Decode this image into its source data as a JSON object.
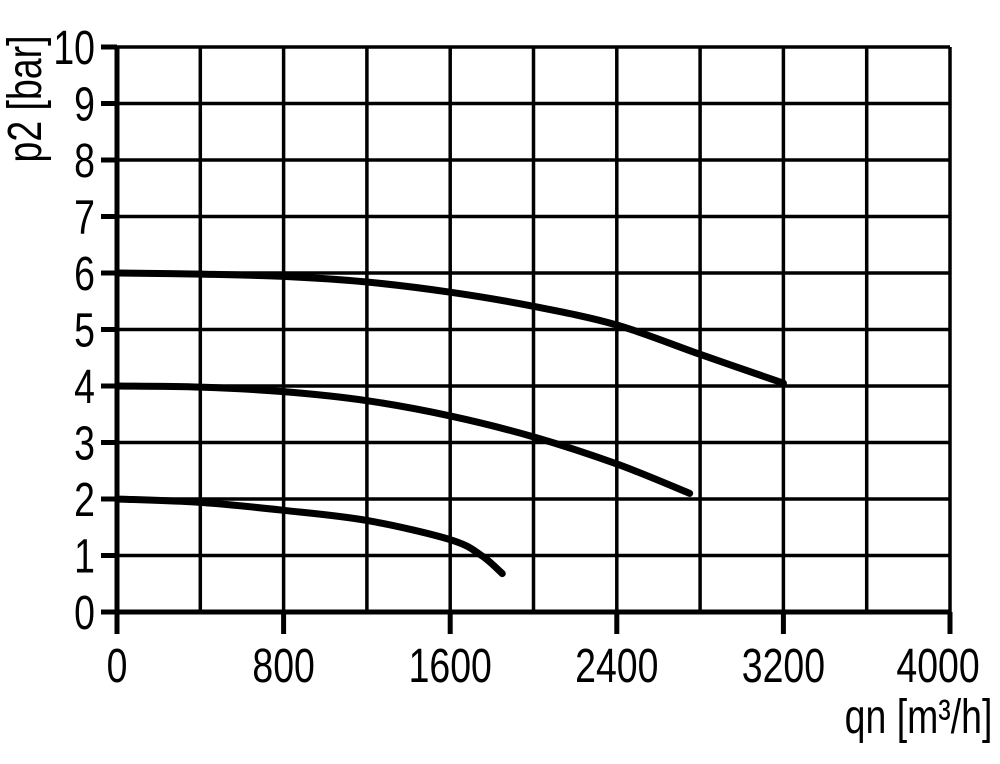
{
  "chart_data": {
    "type": "line",
    "title": "",
    "xlabel": "qn [m³/h]",
    "ylabel": "p2 [bar]",
    "xlim": [
      0,
      4000
    ],
    "ylim": [
      0,
      10
    ],
    "x_tick_values": [
      0,
      800,
      1600,
      2400,
      3200,
      4000
    ],
    "x_tick_labels": [
      "0",
      "800",
      "1600",
      "2400",
      "3200",
      "4000"
    ],
    "x_grid_step": 400,
    "y_tick_values": [
      0,
      1,
      2,
      3,
      4,
      5,
      6,
      7,
      8,
      9,
      10
    ],
    "y_tick_labels": [
      "0",
      "1",
      "2",
      "3",
      "4",
      "5",
      "6",
      "7",
      "8",
      "9",
      "10"
    ],
    "grid": true,
    "legend_position": "none",
    "colors": {
      "background": "#ffffff",
      "grid": "#000000",
      "axis": "#000000",
      "curve": "#000000"
    },
    "series": [
      {
        "name": "curve starting at 6 bar",
        "points": [
          [
            0,
            6.0
          ],
          [
            400,
            5.98
          ],
          [
            800,
            5.94
          ],
          [
            1200,
            5.84
          ],
          [
            1600,
            5.66
          ],
          [
            2000,
            5.41
          ],
          [
            2400,
            5.08
          ],
          [
            2800,
            4.56
          ],
          [
            3200,
            4.05
          ]
        ]
      },
      {
        "name": "curve starting at 4 bar",
        "points": [
          [
            0,
            4.0
          ],
          [
            400,
            3.98
          ],
          [
            800,
            3.9
          ],
          [
            1200,
            3.74
          ],
          [
            1600,
            3.47
          ],
          [
            2000,
            3.1
          ],
          [
            2400,
            2.62
          ],
          [
            2750,
            2.1
          ]
        ]
      },
      {
        "name": "curve starting at 2 bar",
        "points": [
          [
            0,
            2.0
          ],
          [
            400,
            1.94
          ],
          [
            800,
            1.8
          ],
          [
            1200,
            1.62
          ],
          [
            1600,
            1.28
          ],
          [
            1750,
            1.0
          ],
          [
            1850,
            0.68
          ]
        ]
      }
    ]
  }
}
